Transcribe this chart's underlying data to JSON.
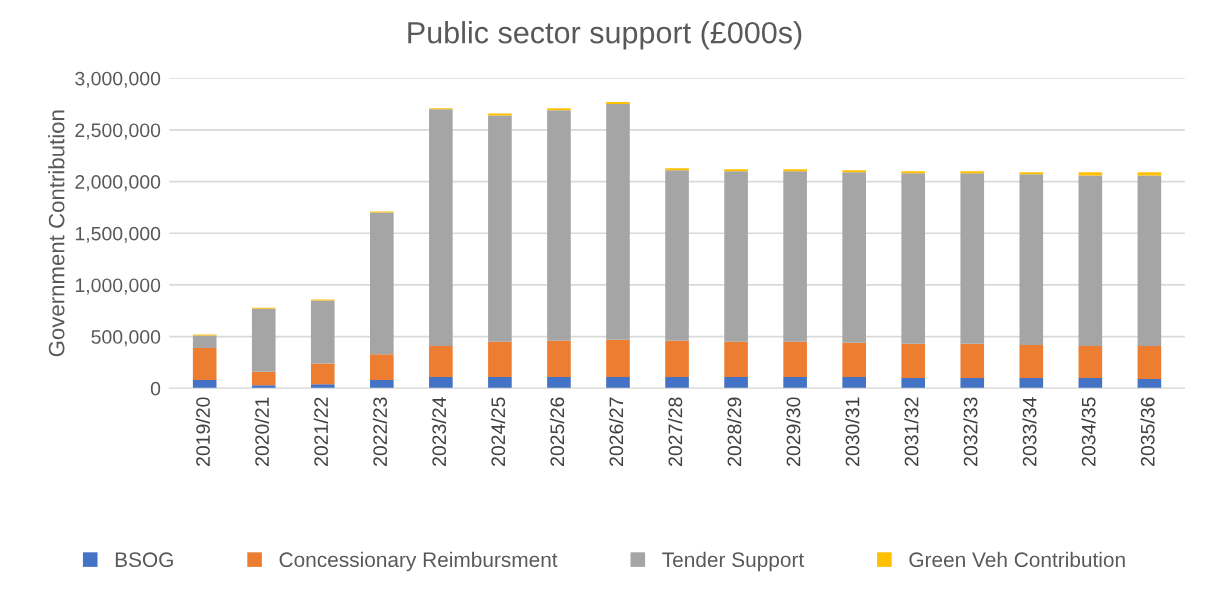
{
  "chart_data": {
    "type": "bar",
    "title": "Public sector support (£000s)",
    "ylabel": "Government Contribution",
    "categories": [
      "2019/20",
      "2020/21",
      "2021/22",
      "2022/23",
      "2023/24",
      "2024/25",
      "2025/26",
      "2026/27",
      "2027/28",
      "2028/29",
      "2029/30",
      "2030/31",
      "2031/32",
      "2032/33",
      "2033/34",
      "2034/35",
      "2035/36"
    ],
    "stacked": true,
    "series": [
      {
        "name": "BSOG",
        "color": "#4472c4",
        "values": [
          80000,
          30000,
          40000,
          80000,
          110000,
          110000,
          110000,
          110000,
          110000,
          110000,
          110000,
          110000,
          100000,
          100000,
          100000,
          100000,
          90000
        ]
      },
      {
        "name": "Concessionary Reimbursment",
        "color": "#ed7d31",
        "values": [
          310000,
          130000,
          200000,
          250000,
          300000,
          340000,
          350000,
          360000,
          350000,
          340000,
          340000,
          330000,
          330000,
          330000,
          320000,
          310000,
          320000
        ]
      },
      {
        "name": "Tender Support",
        "color": "#a5a5a5",
        "values": [
          120000,
          610000,
          610000,
          1370000,
          2290000,
          2190000,
          2230000,
          2280000,
          1650000,
          1650000,
          1650000,
          1650000,
          1650000,
          1650000,
          1650000,
          1650000,
          1650000
        ]
      },
      {
        "name": "Green Veh Contribution",
        "color": "#ffc000",
        "values": [
          10000,
          10000,
          10000,
          10000,
          10000,
          20000,
          20000,
          20000,
          20000,
          20000,
          20000,
          20000,
          20000,
          20000,
          20000,
          30000,
          30000
        ]
      }
    ],
    "ylim": [
      0,
      3000000
    ],
    "yticks": [
      {
        "value": 0,
        "label": "0"
      },
      {
        "value": 500000,
        "label": "500,000"
      },
      {
        "value": 1000000,
        "label": "1,000,000"
      },
      {
        "value": 1500000,
        "label": "1,500,000"
      },
      {
        "value": 2000000,
        "label": "2,000,000"
      },
      {
        "value": 2500000,
        "label": "2,500,000"
      },
      {
        "value": 3000000,
        "label": "3,000,000"
      }
    ],
    "grid": "y",
    "legend": "bottom"
  }
}
